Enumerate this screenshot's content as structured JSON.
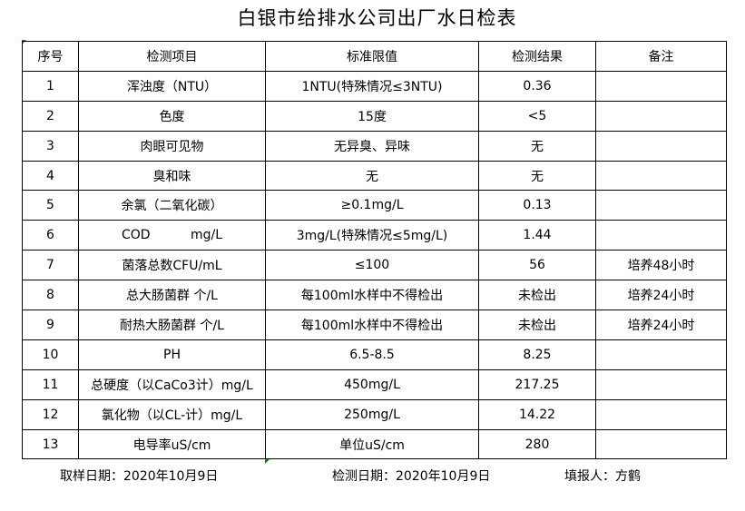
{
  "title": "白银市给排水公司出厂水日检表",
  "headers": [
    "序号",
    "检测项目",
    "标准限值",
    "检测结果",
    "备注"
  ],
  "rows": [
    [
      "1",
      "浑浊度（NTU）",
      "1NTU(特殊情况≤3NTU)",
      "0.36",
      ""
    ],
    [
      "2",
      "色度",
      "15度",
      "<5",
      ""
    ],
    [
      "3",
      "肉眼可见物",
      "无异臭、异味",
      "无",
      ""
    ],
    [
      "4",
      "臭和味",
      "无",
      "无",
      ""
    ],
    [
      "5",
      "余氯（二氧化碳）",
      "≥0.1mg/L",
      "0.13",
      ""
    ],
    [
      "6",
      "COD          mg/L",
      "3mg/L(特殊情况≤5mg/L)",
      "1.44",
      ""
    ],
    [
      "7",
      "菌落总数CFU/mL",
      "≤100",
      "56",
      "培养48小时"
    ],
    [
      "8",
      "总大肠菌群 个/L",
      "每100ml水样中不得检出",
      "未检出",
      "培养24小时"
    ],
    [
      "9",
      "耐热大肠菌群 个/L",
      "每100ml水样中不得检出",
      "未检出",
      "培养24小时"
    ],
    [
      "10",
      "PH",
      "6.5-8.5",
      "8.25",
      ""
    ],
    [
      "11",
      "总硬度（以CaCo3计）mg/L",
      "450mg/L",
      "217.25",
      ""
    ],
    [
      "12",
      "氯化物（以CL-计）mg/L",
      "250mg/L",
      "14.22",
      ""
    ],
    [
      "13",
      "电导率uS/cm",
      "单位uS/cm",
      "280",
      ""
    ]
  ],
  "footer": {
    "sampling_date": "取样日期：2020年10月9日",
    "test_date": "检测日期：2020年10月9日",
    "reporter": "填报人：方鹤"
  }
}
